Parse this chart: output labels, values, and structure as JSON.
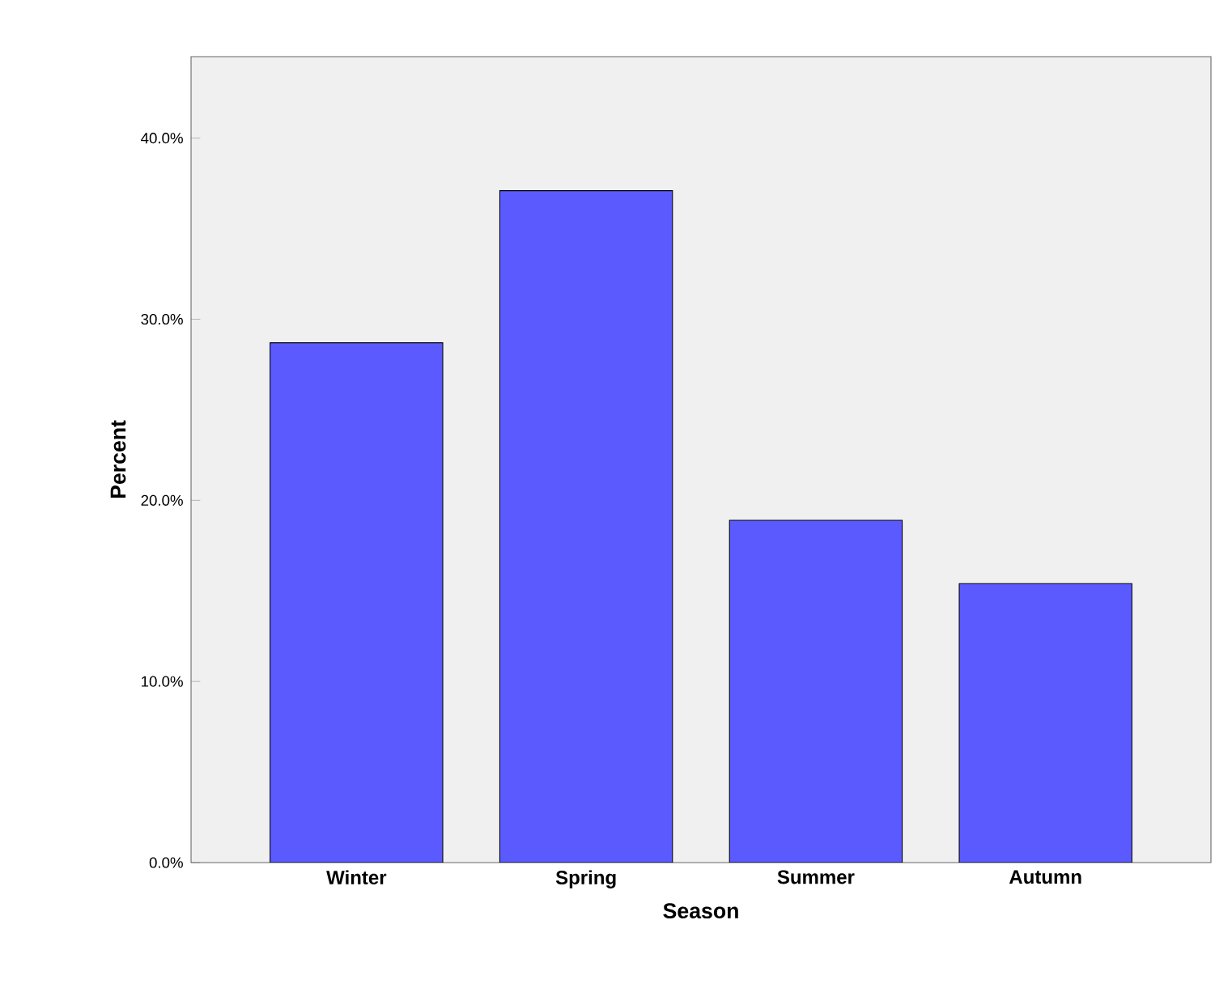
{
  "chart_data": {
    "type": "bar",
    "xlabel": "Season",
    "ylabel": "Percent",
    "categories": [
      "Winter",
      "Spring",
      "Summer",
      "Autumn"
    ],
    "values": [
      28.7,
      37.1,
      18.9,
      15.4
    ],
    "color": "#5a5aff",
    "ylim": [
      0,
      44.5
    ],
    "yticks": [
      {
        "value": 0,
        "label": "0.0%"
      },
      {
        "value": 10,
        "label": "10.0%"
      },
      {
        "value": 20,
        "label": "20.0%"
      },
      {
        "value": 30,
        "label": "30.0%"
      },
      {
        "value": 40,
        "label": "40.0%"
      }
    ],
    "grid": false
  }
}
